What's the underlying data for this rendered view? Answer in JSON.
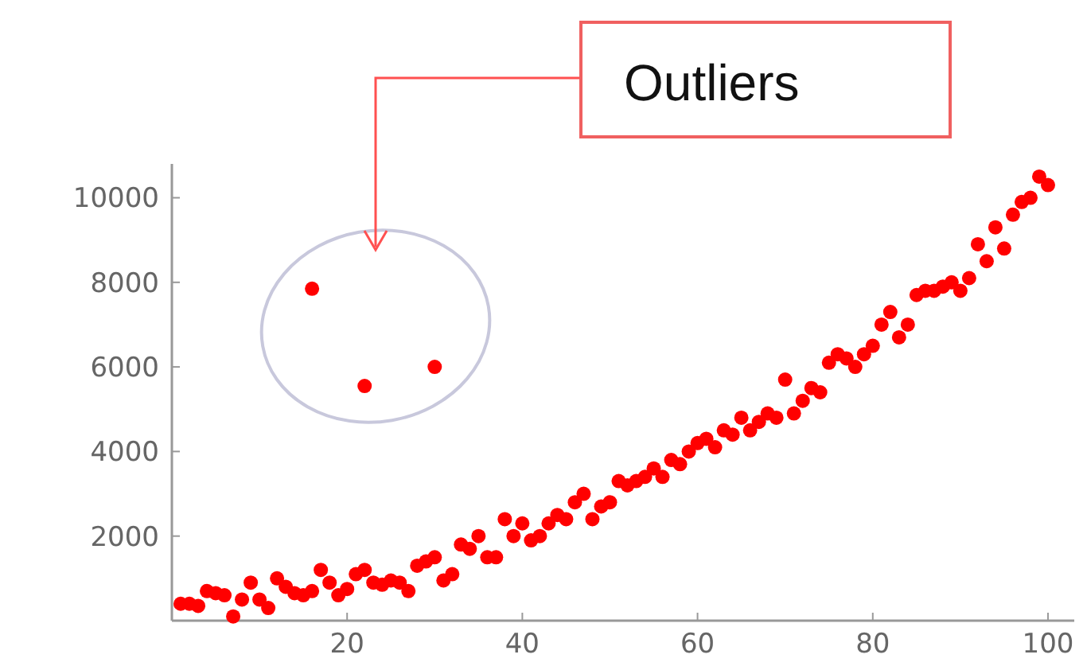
{
  "chart_data": {
    "type": "scatter",
    "annotations": [
      "Outliers"
    ],
    "xlim": [
      0,
      103
    ],
    "ylim": [
      0,
      10800
    ],
    "xticks": [
      20,
      40,
      60,
      80,
      100
    ],
    "yticks": [
      2000,
      4000,
      6000,
      8000,
      10000
    ],
    "grid": false,
    "marker": "circle",
    "series": [
      {
        "color": "#ff0000",
        "x": [
          1,
          2,
          3,
          4,
          5,
          6,
          7,
          8,
          9,
          10,
          11,
          12,
          13,
          14,
          15,
          16,
          17,
          18,
          19,
          20,
          21,
          22,
          23,
          24,
          25,
          26,
          27,
          28,
          29,
          30,
          31,
          32,
          33,
          34,
          35,
          36,
          37,
          38,
          39,
          40,
          41,
          42,
          43,
          44,
          45,
          46,
          47,
          48,
          49,
          50,
          51,
          52,
          53,
          54,
          55,
          56,
          57,
          58,
          59,
          60,
          61,
          62,
          63,
          64,
          65,
          66,
          67,
          68,
          69,
          70,
          71,
          72,
          73,
          74,
          75,
          76,
          77,
          78,
          79,
          80,
          81,
          82,
          83,
          84,
          85,
          86,
          87,
          88,
          89,
          90,
          91,
          92,
          93,
          94,
          95,
          96,
          97,
          98,
          99,
          100,
          16,
          22,
          30
        ],
        "values": [
          400,
          400,
          350,
          700,
          650,
          600,
          100,
          500,
          900,
          500,
          300,
          1000,
          800,
          650,
          600,
          700,
          1200,
          900,
          600,
          750,
          1100,
          1200,
          900,
          850,
          950,
          900,
          700,
          1300,
          1400,
          1500,
          950,
          1100,
          1800,
          1700,
          2000,
          1500,
          1500,
          2400,
          2000,
          2300,
          1900,
          2000,
          2300,
          2500,
          2400,
          2800,
          3000,
          2400,
          2700,
          2800,
          3300,
          3200,
          3300,
          3400,
          3600,
          3400,
          3800,
          3700,
          4000,
          4200,
          4300,
          4100,
          4500,
          4400,
          4800,
          4500,
          4700,
          4900,
          4800,
          5700,
          4900,
          5200,
          5500,
          5400,
          6100,
          6300,
          6200,
          6000,
          6300,
          6500,
          7000,
          7300,
          6700,
          7000,
          7700,
          7800,
          7800,
          7900,
          8000,
          7800,
          8100,
          8900,
          8500,
          9300,
          8800,
          9600,
          9900,
          10000,
          10500,
          10300,
          7850,
          5550,
          6000
        ]
      }
    ]
  }
}
